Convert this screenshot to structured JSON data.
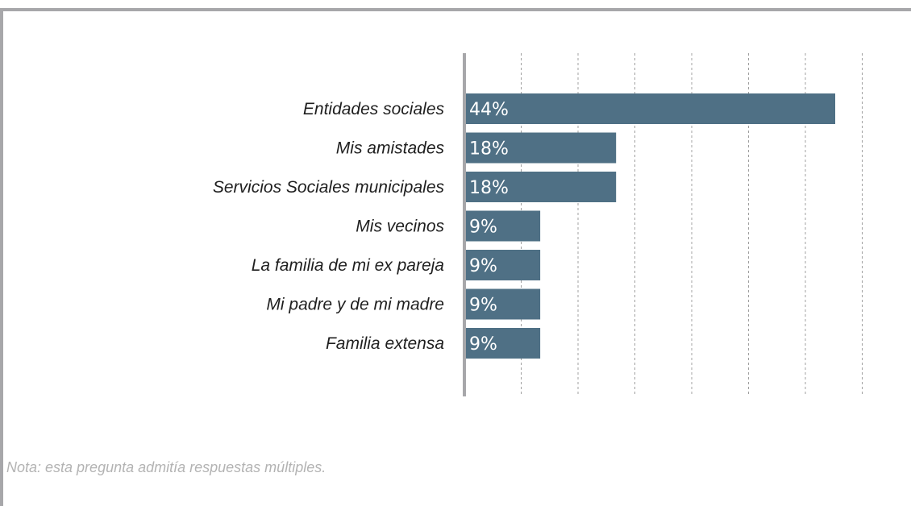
{
  "colors": {
    "bar": "#4f7085",
    "axis": "#a7a7aa",
    "grid": "#a0a0a0",
    "frame": "#a7a7aa",
    "label": "#1f1f1f",
    "note": "#b3b3b3"
  },
  "chart_data": {
    "type": "bar",
    "orientation": "horizontal",
    "categories": [
      "Entidades sociales",
      "Mis amistades",
      "Servicios Sociales municipales",
      "Mis vecinos",
      "La familia de mi ex pareja",
      "Mi padre y de mi madre",
      "Familia extensa"
    ],
    "values": [
      44,
      18,
      18,
      9,
      9,
      9,
      9
    ],
    "value_labels": [
      "44%",
      "18%",
      "18%",
      "9%",
      "9%",
      "9%",
      "9%"
    ],
    "xlim": [
      0,
      50
    ],
    "grid": "vertical dashed",
    "title": "",
    "xlabel": "",
    "ylabel": ""
  },
  "note": "Nota: esta pregunta admitía respuestas múltiples."
}
